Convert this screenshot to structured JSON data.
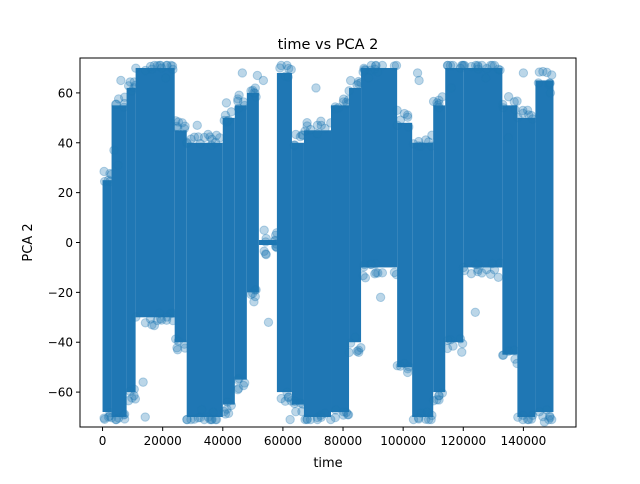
{
  "chart_data": {
    "type": "scatter",
    "title": "time vs PCA 2",
    "xlabel": "time",
    "ylabel": "PCA 2",
    "xlim": [
      -7500,
      157500
    ],
    "ylim": [
      -74,
      74
    ],
    "x_ticks": [
      0,
      20000,
      40000,
      60000,
      80000,
      100000,
      120000,
      140000
    ],
    "x_tick_labels": [
      "0",
      "20000",
      "40000",
      "60000",
      "80000",
      "100000",
      "120000",
      "140000"
    ],
    "y_ticks": [
      -60,
      -40,
      -20,
      0,
      20,
      40,
      60
    ],
    "y_tick_labels": [
      "−60",
      "−40",
      "−20",
      "0",
      "20",
      "40",
      "60"
    ],
    "grid": false,
    "legend": "none",
    "series": [
      {
        "name": "PCA 2",
        "color": "#1f77b4",
        "marker": "o",
        "alpha": 0.3,
        "density_bands": [
          {
            "x": [
              0,
              3000
            ],
            "y": [
              -68,
              25
            ]
          },
          {
            "x": [
              3000,
              8000
            ],
            "y": [
              -70,
              55
            ]
          },
          {
            "x": [
              8000,
              11000
            ],
            "y": [
              -60,
              62
            ]
          },
          {
            "x": [
              11000,
              24000
            ],
            "y": [
              -30,
              70
            ]
          },
          {
            "x": [
              24000,
              28000
            ],
            "y": [
              -40,
              45
            ]
          },
          {
            "x": [
              28000,
              40000
            ],
            "y": [
              -70,
              40
            ]
          },
          {
            "x": [
              40000,
              44000
            ],
            "y": [
              -65,
              50
            ]
          },
          {
            "x": [
              44000,
              48000
            ],
            "y": [
              -55,
              55
            ]
          },
          {
            "x": [
              48000,
              52000
            ],
            "y": [
              -20,
              60
            ]
          },
          {
            "x": [
              52000,
              58000
            ],
            "y": [
              -1,
              1
            ]
          },
          {
            "x": [
              58000,
              63000
            ],
            "y": [
              -60,
              68
            ]
          },
          {
            "x": [
              63000,
              67000
            ],
            "y": [
              -65,
              40
            ]
          },
          {
            "x": [
              67000,
              76000
            ],
            "y": [
              -70,
              45
            ]
          },
          {
            "x": [
              76000,
              82000
            ],
            "y": [
              -68,
              55
            ]
          },
          {
            "x": [
              82000,
              86000
            ],
            "y": [
              -40,
              62
            ]
          },
          {
            "x": [
              86000,
              98000
            ],
            "y": [
              -10,
              70
            ]
          },
          {
            "x": [
              98000,
              103000
            ],
            "y": [
              -50,
              48
            ]
          },
          {
            "x": [
              103000,
              110000
            ],
            "y": [
              -70,
              40
            ]
          },
          {
            "x": [
              110000,
              114000
            ],
            "y": [
              -60,
              55
            ]
          },
          {
            "x": [
              114000,
              120000
            ],
            "y": [
              -40,
              70
            ]
          },
          {
            "x": [
              120000,
              133000
            ],
            "y": [
              -10,
              70
            ]
          },
          {
            "x": [
              133000,
              138000
            ],
            "y": [
              -45,
              55
            ]
          },
          {
            "x": [
              138000,
              144000
            ],
            "y": [
              -70,
              50
            ]
          },
          {
            "x": [
              144000,
              150000
            ],
            "y": [
              -68,
              65
            ]
          }
        ],
        "outliers": [
          [
            3800,
            37
          ],
          [
            5200,
            31
          ],
          [
            6100,
            65
          ],
          [
            13500,
            -56
          ],
          [
            14200,
            -70
          ],
          [
            21000,
            66
          ],
          [
            26500,
            48
          ],
          [
            31500,
            47
          ],
          [
            33000,
            -67
          ],
          [
            36800,
            -68
          ],
          [
            39000,
            42
          ],
          [
            41200,
            56
          ],
          [
            46500,
            68
          ],
          [
            51500,
            67
          ],
          [
            53500,
            65
          ],
          [
            55200,
            -32
          ],
          [
            59000,
            70
          ],
          [
            62400,
            -71
          ],
          [
            71000,
            62
          ],
          [
            78500,
            54
          ],
          [
            84000,
            -38
          ],
          [
            88500,
            66
          ],
          [
            92500,
            -22
          ],
          [
            98000,
            53
          ],
          [
            104800,
            68
          ],
          [
            105300,
            65
          ],
          [
            108000,
            -68
          ],
          [
            111500,
            55
          ],
          [
            116000,
            62
          ],
          [
            124000,
            -28
          ],
          [
            127500,
            66
          ],
          [
            135000,
            42
          ],
          [
            140000,
            68
          ],
          [
            145000,
            64
          ],
          [
            147000,
            -72
          ],
          [
            149000,
            60
          ]
        ]
      }
    ]
  }
}
